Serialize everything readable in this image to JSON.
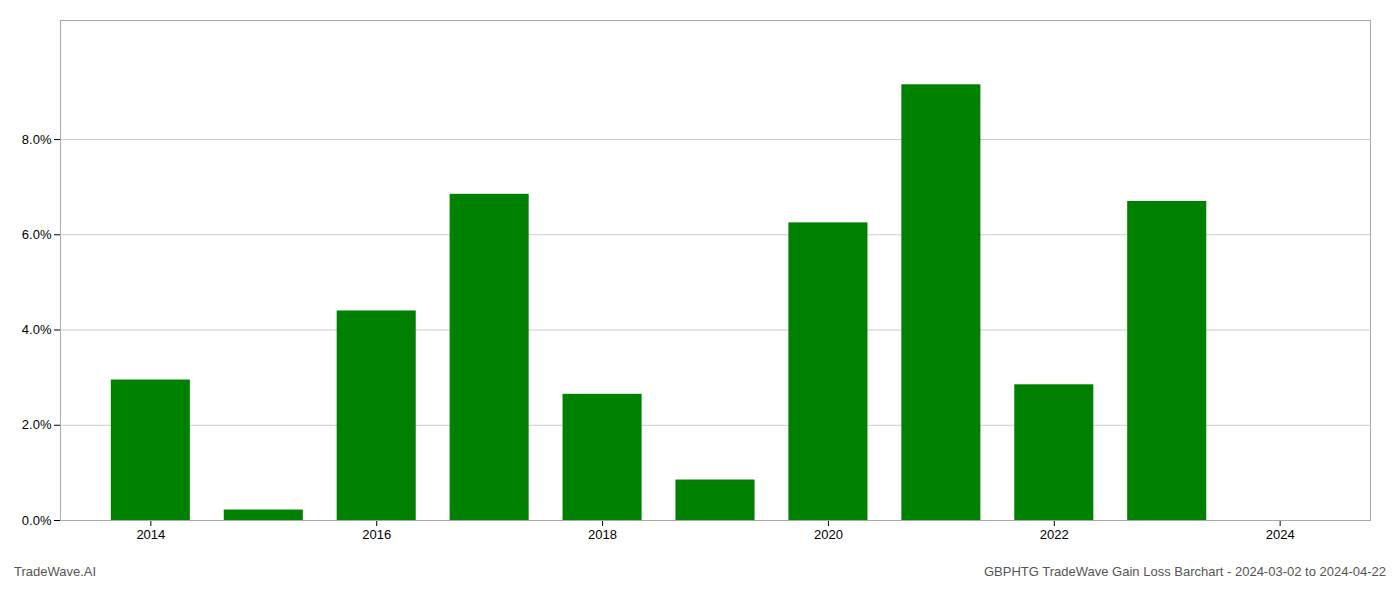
{
  "chart_data": {
    "type": "bar",
    "x": [
      2014,
      2015,
      2016,
      2017,
      2018,
      2019,
      2020,
      2021,
      2022,
      2023
    ],
    "values": [
      0.0295,
      0.0022,
      0.044,
      0.0685,
      0.0265,
      0.0085,
      0.0625,
      0.0915,
      0.0285,
      0.067
    ],
    "color": "#008000",
    "xlim": [
      2013.2,
      2024.8
    ],
    "xticks": [
      2014,
      2016,
      2018,
      2020,
      2022,
      2024
    ],
    "ylim": [
      0.0,
      0.105
    ],
    "yticks": [
      {
        "value": 0.0,
        "label": "0.0%"
      },
      {
        "value": 0.02,
        "label": "2.0%"
      },
      {
        "value": 0.04,
        "label": "4.0%"
      },
      {
        "value": 0.06,
        "label": "6.0%"
      },
      {
        "value": 0.08,
        "label": "8.0%"
      }
    ],
    "grid": true,
    "annotations": [
      "TradeWave.AI",
      "GBPHTG TradeWave Gain Loss Barchart - 2024-03-02 to 2024-04-22"
    ]
  }
}
